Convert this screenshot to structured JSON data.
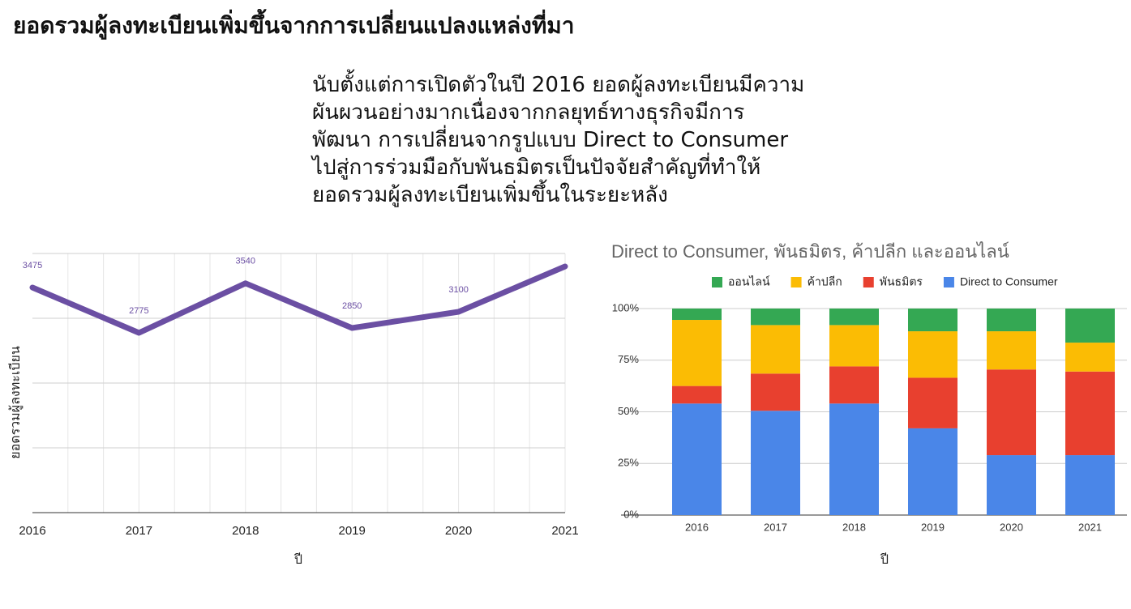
{
  "header": {
    "title": "ยอดรวมผู้ลงทะเบียนเพิ่มขึ้นจากการเปลี่ยนแปลงแหล่งที่มา",
    "text_lines": [
      "นับตั้งแต่การเปิดตัวในปี 2016 ยอดผู้ลงทะเบียนมีความ",
      "ผันผวนอย่างมากเนื่องจากกลยุทธ์ทางธุรกิจมีการ",
      "พัฒนา การเปลี่ยนจากรูปแบบ Direct to Consumer",
      "ไปสู่การร่วมมือกับพันธมิตรเป็นปัจจัยสำคัญที่ทำให้",
      "ยอดรวมผู้ลงทะเบียนเพิ่มขึ้นในระยะหลัง"
    ]
  },
  "chart_data": [
    {
      "type": "line",
      "x_label": "ปี",
      "y_label": "ยอดรวมผู้ลงทะเบียน",
      "categories": [
        "2016",
        "2017",
        "2018",
        "2019",
        "2020",
        "2021"
      ],
      "values": [
        3475,
        2775,
        3540,
        2850,
        3100,
        3800
      ],
      "value_labels": [
        "3475",
        "2775",
        "3540",
        "2850",
        "3100",
        null
      ],
      "color": "#6b4fa3",
      "ylim": [
        0,
        4000
      ],
      "yticks": [
        0,
        1000,
        2000,
        3000,
        4000
      ],
      "ytick_labels": false,
      "grid": true
    },
    {
      "type": "stacked_bar_100",
      "title": "Direct to Consumer, พันธมิตร, ค้าปลีก และออนไลน์",
      "x_label": "ปี",
      "categories": [
        "2016",
        "2017",
        "2018",
        "2019",
        "2020",
        "2021"
      ],
      "series": [
        {
          "name": "Direct to Consumer",
          "color": "#4a86e8",
          "values": [
            54,
            50.5,
            54,
            42,
            29,
            29
          ]
        },
        {
          "name": "พันธมิตร",
          "color": "#e8402f",
          "values": [
            8.5,
            18,
            18,
            24.5,
            41.5,
            40.5
          ]
        },
        {
          "name": "ค้าปลีก",
          "color": "#fbbc04",
          "values": [
            32,
            23.5,
            20,
            22.5,
            18.5,
            14
          ]
        },
        {
          "name": "ออนไลน์",
          "color": "#34a853",
          "values": [
            5.5,
            8,
            8,
            11,
            11,
            16.5
          ]
        }
      ],
      "ylim": [
        0,
        100
      ],
      "yticks": [
        {
          "value": 0,
          "label": "0%"
        },
        {
          "value": 25,
          "label": "25%"
        },
        {
          "value": 50,
          "label": "50%"
        },
        {
          "value": 75,
          "label": "75%"
        },
        {
          "value": 100,
          "label": "100%"
        }
      ],
      "grid": true,
      "legend": "top"
    }
  ]
}
